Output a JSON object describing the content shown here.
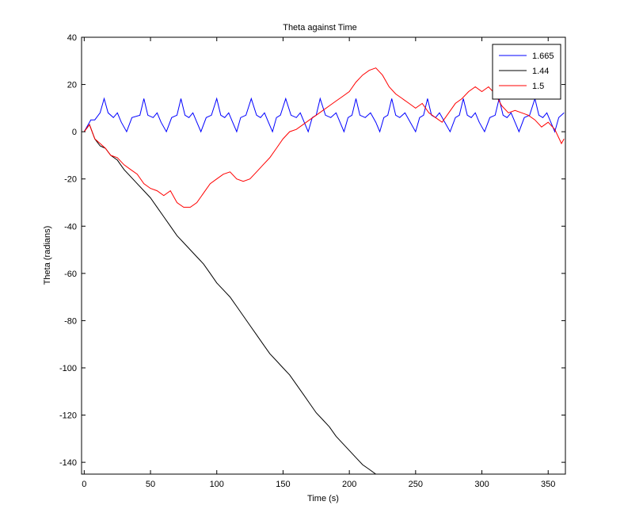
{
  "chart_data": {
    "type": "line",
    "title": "Theta against Time",
    "xlabel": "Time (s)",
    "ylabel": "Theta (radians)",
    "xlim": [
      -2,
      363
    ],
    "ylim": [
      -145,
      40
    ],
    "xticks": [
      0,
      50,
      100,
      150,
      200,
      250,
      300,
      350
    ],
    "yticks": [
      40,
      20,
      0,
      -20,
      -40,
      -60,
      -80,
      -100,
      -120,
      -140
    ],
    "grid": false,
    "legend_position": "top-right",
    "series": [
      {
        "name": "1.665",
        "color": "#0000ff",
        "x": [
          0,
          5,
          8,
          12,
          15,
          18,
          22,
          25,
          28,
          32,
          36,
          42,
          45,
          48,
          52,
          55,
          58,
          62,
          66,
          70,
          73,
          76,
          79,
          82,
          85,
          88,
          92,
          96,
          100,
          103,
          106,
          109,
          112,
          115,
          118,
          122,
          126,
          130,
          133,
          136,
          139,
          142,
          145,
          148,
          152,
          156,
          160,
          163,
          166,
          169,
          172,
          175,
          178,
          182,
          186,
          190,
          193,
          196,
          199,
          202,
          205,
          208,
          212,
          216,
          220,
          223,
          226,
          229,
          232,
          235,
          238,
          242,
          246,
          250,
          253,
          256,
          259,
          262,
          265,
          268,
          272,
          276,
          280,
          283,
          286,
          289,
          292,
          295,
          298,
          302,
          306,
          310,
          313,
          316,
          319,
          322,
          325,
          328,
          332,
          336,
          340,
          343,
          346,
          349,
          352,
          355,
          358,
          362
        ],
        "y": [
          0,
          5,
          5,
          8,
          14,
          8,
          6,
          8,
          4,
          0,
          6,
          7,
          14,
          7,
          6,
          8,
          4,
          0,
          6,
          7,
          14,
          7,
          6,
          8,
          4,
          0,
          6,
          7,
          14,
          7,
          6,
          8,
          4,
          0,
          6,
          7,
          14,
          7,
          6,
          8,
          4,
          0,
          6,
          7,
          14,
          7,
          6,
          8,
          4,
          0,
          6,
          7,
          14,
          7,
          6,
          8,
          4,
          0,
          6,
          7,
          14,
          7,
          6,
          8,
          4,
          0,
          6,
          7,
          14,
          7,
          6,
          8,
          4,
          0,
          6,
          7,
          14,
          7,
          6,
          8,
          4,
          0,
          6,
          7,
          14,
          7,
          6,
          8,
          4,
          0,
          6,
          7,
          14,
          7,
          6,
          8,
          4,
          0,
          6,
          7,
          14,
          7,
          6,
          8,
          4,
          0,
          6,
          8
        ]
      },
      {
        "name": "1.44",
        "color": "#000000",
        "x": [
          0,
          4,
          8,
          12,
          16,
          20,
          25,
          30,
          35,
          40,
          45,
          50,
          55,
          60,
          65,
          70,
          75,
          80,
          85,
          90,
          95,
          100,
          105,
          110,
          115,
          120,
          125,
          130,
          135,
          140,
          145,
          150,
          155,
          160,
          165,
          170,
          175,
          180,
          185,
          190,
          195,
          200,
          205,
          210,
          215,
          220,
          223
        ],
        "y": [
          0,
          3,
          -3,
          -6,
          -7,
          -10,
          -12,
          -16,
          -19,
          -22,
          -25,
          -28,
          -32,
          -36,
          -40,
          -44,
          -47,
          -50,
          -53,
          -56,
          -60,
          -64,
          -67,
          -70,
          -74,
          -78,
          -82,
          -86,
          -90,
          -94,
          -97,
          -100,
          -103,
          -107,
          -111,
          -115,
          -119,
          -122,
          -125,
          -129,
          -132,
          -135,
          -138,
          -141,
          -143,
          -145,
          -145
        ]
      },
      {
        "name": "1.5",
        "color": "#ff0000",
        "x": [
          0,
          4,
          8,
          12,
          16,
          20,
          25,
          30,
          35,
          40,
          45,
          50,
          55,
          60,
          65,
          70,
          75,
          80,
          85,
          90,
          95,
          100,
          105,
          110,
          115,
          120,
          125,
          130,
          135,
          140,
          145,
          150,
          155,
          160,
          165,
          170,
          175,
          180,
          185,
          190,
          195,
          200,
          205,
          210,
          215,
          220,
          225,
          230,
          235,
          240,
          245,
          250,
          255,
          260,
          265,
          270,
          275,
          280,
          285,
          290,
          295,
          300,
          305,
          310,
          315,
          320,
          325,
          330,
          335,
          340,
          345,
          350,
          355,
          360,
          362
        ],
        "y": [
          0,
          3,
          -3,
          -5,
          -7,
          -10,
          -11,
          -14,
          -16,
          -18,
          -22,
          -24,
          -25,
          -27,
          -25,
          -30,
          -32,
          -32,
          -30,
          -26,
          -22,
          -20,
          -18,
          -17,
          -20,
          -21,
          -20,
          -17,
          -14,
          -11,
          -7,
          -3,
          0,
          1,
          3,
          5,
          7,
          9,
          11,
          13,
          15,
          17,
          21,
          24,
          26,
          27,
          24,
          19,
          16,
          14,
          12,
          10,
          12,
          8,
          6,
          4,
          8,
          12,
          14,
          17,
          19,
          17,
          19,
          16,
          11,
          8,
          9,
          8,
          7,
          5,
          2,
          4,
          1,
          -5,
          -3
        ]
      }
    ]
  }
}
